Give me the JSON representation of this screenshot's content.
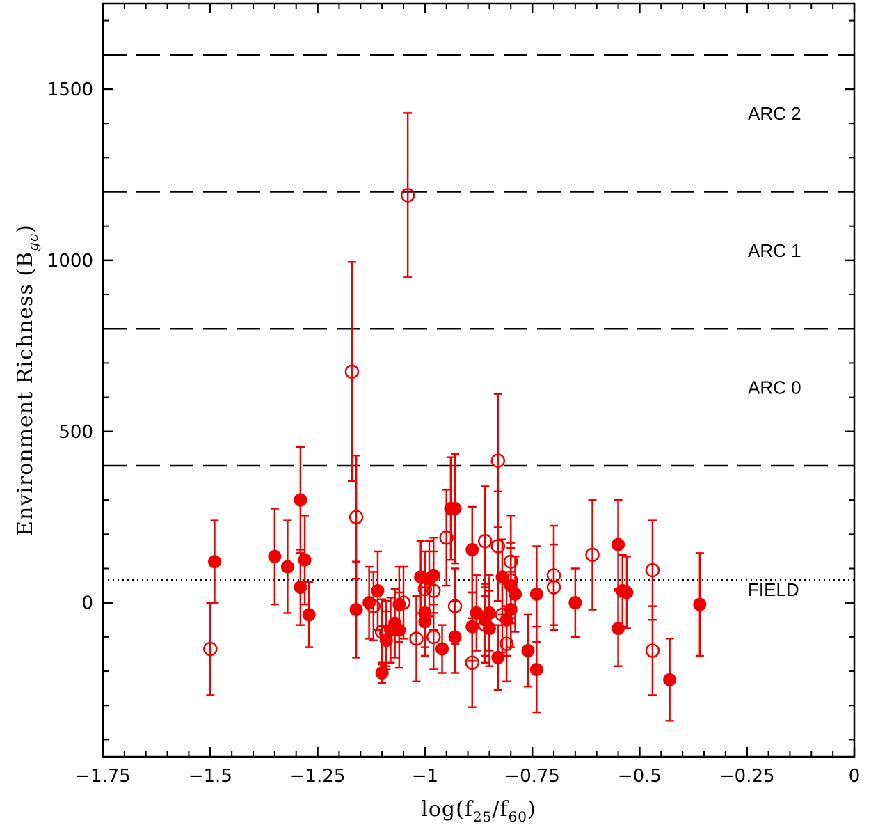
{
  "chart_data": {
    "type": "scatter",
    "title": "",
    "xlabel": "log(f25/f60)",
    "xlabel_parts": {
      "pre": "log(f",
      "sub1": "25",
      "mid": "/f",
      "sub2": "60",
      "post": ")"
    },
    "ylabel": "Environment Richness (Bgc)",
    "ylabel_parts": {
      "pre": "Environment Richness (B",
      "sub": "gc",
      "post": ")"
    },
    "xlim": [
      -1.75,
      0
    ],
    "ylim": [
      -450,
      1750
    ],
    "x_ticks": [
      {
        "value": -1.75,
        "label": "−1.75"
      },
      {
        "value": -1.5,
        "label": "−1.5"
      },
      {
        "value": -1.25,
        "label": "−1.25"
      },
      {
        "value": -1.0,
        "label": "−1"
      },
      {
        "value": -0.75,
        "label": "−0.75"
      },
      {
        "value": -0.5,
        "label": "−0.5"
      },
      {
        "value": -0.25,
        "label": "−0.25"
      },
      {
        "value": 0,
        "label": "0"
      }
    ],
    "y_ticks": [
      {
        "value": 0,
        "label": "0"
      },
      {
        "value": 500,
        "label": "500"
      },
      {
        "value": 1000,
        "label": "1000"
      },
      {
        "value": 1500,
        "label": "1500"
      }
    ],
    "grid": false,
    "color": "#ee0000",
    "reference_lines": [
      {
        "y": 400,
        "style": "dashed"
      },
      {
        "y": 800,
        "style": "dashed"
      },
      {
        "y": 1200,
        "style": "dashed"
      },
      {
        "y": 1600,
        "style": "dashed"
      },
      {
        "y": 67,
        "style": "dotted"
      }
    ],
    "region_labels": [
      {
        "text": "FIELD",
        "y": 20
      },
      {
        "text": "ARC 0",
        "y": 610
      },
      {
        "text": "ARC 1",
        "y": 1010
      },
      {
        "text": "ARC 2",
        "y": 1410
      }
    ],
    "series": [
      {
        "marker": "filled-circle",
        "points": [
          {
            "x": -1.49,
            "y": 120,
            "err": 120
          },
          {
            "x": -1.35,
            "y": 135,
            "err": 140
          },
          {
            "x": -1.32,
            "y": 105,
            "err": 135
          },
          {
            "x": -1.29,
            "y": 300,
            "err": 155
          },
          {
            "x": -1.29,
            "y": 45,
            "err": 110
          },
          {
            "x": -1.28,
            "y": 125,
            "err": 130
          },
          {
            "x": -1.27,
            "y": -35,
            "err": 95
          },
          {
            "x": -1.16,
            "y": -20,
            "err": 140
          },
          {
            "x": -1.13,
            "y": 0,
            "err": 105
          },
          {
            "x": -1.11,
            "y": 35,
            "err": 115
          },
          {
            "x": -1.1,
            "y": -205,
            "err": 30
          },
          {
            "x": -1.09,
            "y": -110,
            "err": 85
          },
          {
            "x": -1.08,
            "y": -80,
            "err": 95
          },
          {
            "x": -1.07,
            "y": -60,
            "err": 100
          },
          {
            "x": -1.06,
            "y": -5,
            "err": 110
          },
          {
            "x": -1.06,
            "y": -80,
            "err": 110
          },
          {
            "x": -1.01,
            "y": 75,
            "err": 105
          },
          {
            "x": -1.0,
            "y": -30,
            "err": 100
          },
          {
            "x": -1.0,
            "y": -55,
            "err": 100
          },
          {
            "x": -0.99,
            "y": 70,
            "err": 110
          },
          {
            "x": -0.98,
            "y": 80,
            "err": 110
          },
          {
            "x": -0.96,
            "y": -135,
            "err": 70
          },
          {
            "x": -0.94,
            "y": 275,
            "err": 150
          },
          {
            "x": -0.93,
            "y": 275,
            "err": 160
          },
          {
            "x": -0.93,
            "y": -100,
            "err": 105
          },
          {
            "x": -0.89,
            "y": 155,
            "err": 125
          },
          {
            "x": -0.89,
            "y": -70,
            "err": 100
          },
          {
            "x": -0.88,
            "y": -30,
            "err": 110
          },
          {
            "x": -0.86,
            "y": -50,
            "err": 105
          },
          {
            "x": -0.85,
            "y": -30,
            "err": 110
          },
          {
            "x": -0.85,
            "y": -75,
            "err": 110
          },
          {
            "x": -0.83,
            "y": -160,
            "err": 95
          },
          {
            "x": -0.82,
            "y": 75,
            "err": 110
          },
          {
            "x": -0.81,
            "y": -50,
            "err": 105
          },
          {
            "x": -0.8,
            "y": 50,
            "err": 110
          },
          {
            "x": -0.8,
            "y": -20,
            "err": 110
          },
          {
            "x": -0.79,
            "y": 25,
            "err": 110
          },
          {
            "x": -0.76,
            "y": -140,
            "err": 105
          },
          {
            "x": -0.74,
            "y": -195,
            "err": 125
          },
          {
            "x": -0.74,
            "y": 25,
            "err": 140
          },
          {
            "x": -0.65,
            "y": 0,
            "err": 100
          },
          {
            "x": -0.55,
            "y": 170,
            "err": 130
          },
          {
            "x": -0.55,
            "y": -75,
            "err": 110
          },
          {
            "x": -0.54,
            "y": 35,
            "err": 105
          },
          {
            "x": -0.53,
            "y": 30,
            "err": 105
          },
          {
            "x": -0.43,
            "y": -225,
            "err": 120
          },
          {
            "x": -0.36,
            "y": -5,
            "err": 150
          }
        ]
      },
      {
        "marker": "open-circle",
        "points": [
          {
            "x": -1.5,
            "y": -135,
            "err": 135
          },
          {
            "x": -1.17,
            "y": 675,
            "err": 320
          },
          {
            "x": -1.16,
            "y": 250,
            "err": 180
          },
          {
            "x": -1.12,
            "y": -10,
            "err": 100
          },
          {
            "x": -1.1,
            "y": -85,
            "err": 95
          },
          {
            "x": -1.09,
            "y": -90,
            "err": 95
          },
          {
            "x": -1.05,
            "y": 0,
            "err": 105
          },
          {
            "x": -1.04,
            "y": 1190,
            "err": 240
          },
          {
            "x": -1.02,
            "y": -105,
            "err": 125
          },
          {
            "x": -1.0,
            "y": 40,
            "err": 110
          },
          {
            "x": -0.98,
            "y": -100,
            "err": 95
          },
          {
            "x": -0.98,
            "y": 35,
            "err": 115
          },
          {
            "x": -0.95,
            "y": 190,
            "err": 140
          },
          {
            "x": -0.93,
            "y": -10,
            "err": 110
          },
          {
            "x": -0.89,
            "y": -175,
            "err": 130
          },
          {
            "x": -0.86,
            "y": 180,
            "err": 160
          },
          {
            "x": -0.86,
            "y": -65,
            "err": 110
          },
          {
            "x": -0.83,
            "y": 165,
            "err": 160
          },
          {
            "x": -0.83,
            "y": 415,
            "err": 195
          },
          {
            "x": -0.82,
            "y": -35,
            "err": 110
          },
          {
            "x": -0.81,
            "y": -120,
            "err": 110
          },
          {
            "x": -0.8,
            "y": 120,
            "err": 135
          },
          {
            "x": -0.8,
            "y": 65,
            "err": 110
          },
          {
            "x": -0.7,
            "y": 80,
            "err": 145
          },
          {
            "x": -0.7,
            "y": 45,
            "err": 125
          },
          {
            "x": -0.61,
            "y": 140,
            "err": 160
          },
          {
            "x": -0.47,
            "y": 95,
            "err": 145
          },
          {
            "x": -0.47,
            "y": -140,
            "err": 130
          }
        ]
      }
    ]
  }
}
